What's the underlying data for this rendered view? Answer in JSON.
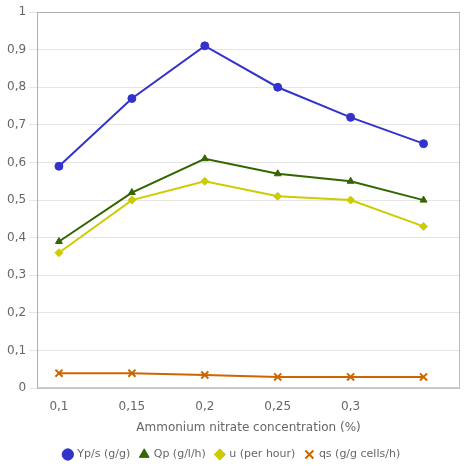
{
  "chart_data": {
    "type": "line",
    "x_label": "Ammonium nitrate concentration (%)",
    "x": [
      0.1,
      0.15,
      0.2,
      0.25,
      0.3,
      0.35
    ],
    "series": [
      {
        "name": "Yp/s (g/g)",
        "color": "#3333CC",
        "marker": "circle",
        "values": [
          0.59,
          0.77,
          0.91,
          0.8,
          0.72,
          0.65
        ]
      },
      {
        "name": "Qp (g/l/h)",
        "color": "#336600",
        "marker": "triangle",
        "values": [
          0.39,
          0.52,
          0.61,
          0.57,
          0.55,
          0.5
        ]
      },
      {
        "name": "u (per hour)",
        "color": "#CCCC00",
        "marker": "diamond",
        "values": [
          0.36,
          0.5,
          0.55,
          0.51,
          0.5,
          0.43
        ]
      },
      {
        "name": "qs (g/g cells/h)",
        "color": "#CC6600",
        "marker": "cross",
        "values": [
          0.04,
          0.04,
          0.035,
          0.03,
          0.03,
          0.03
        ]
      }
    ],
    "xlim": [
      0.085,
      0.375
    ],
    "xticks": [
      {
        "value": 0.1,
        "label": "0,1"
      },
      {
        "value": 0.15,
        "label": "0,15"
      },
      {
        "value": 0.2,
        "label": "0,2"
      },
      {
        "value": 0.25,
        "label": "0,25"
      },
      {
        "value": 0.3,
        "label": "0,3"
      }
    ],
    "ylim": [
      0,
      1.0
    ],
    "yticks": [
      0,
      {
        "value": 0.1,
        "label": "0,1"
      },
      {
        "value": 0.2,
        "label": "0,2"
      },
      {
        "value": 0.3,
        "label": "0,3"
      },
      {
        "value": 0.4,
        "label": "0,4"
      },
      {
        "value": 0.5,
        "label": "0,5"
      },
      {
        "value": 0.6,
        "label": "0,6"
      },
      {
        "value": 0.7,
        "label": "0,7"
      },
      {
        "value": 0.8,
        "label": "0,8"
      },
      {
        "value": 0.9,
        "label": "0,9"
      },
      1
    ],
    "grid": "y",
    "legend": "bottom"
  }
}
